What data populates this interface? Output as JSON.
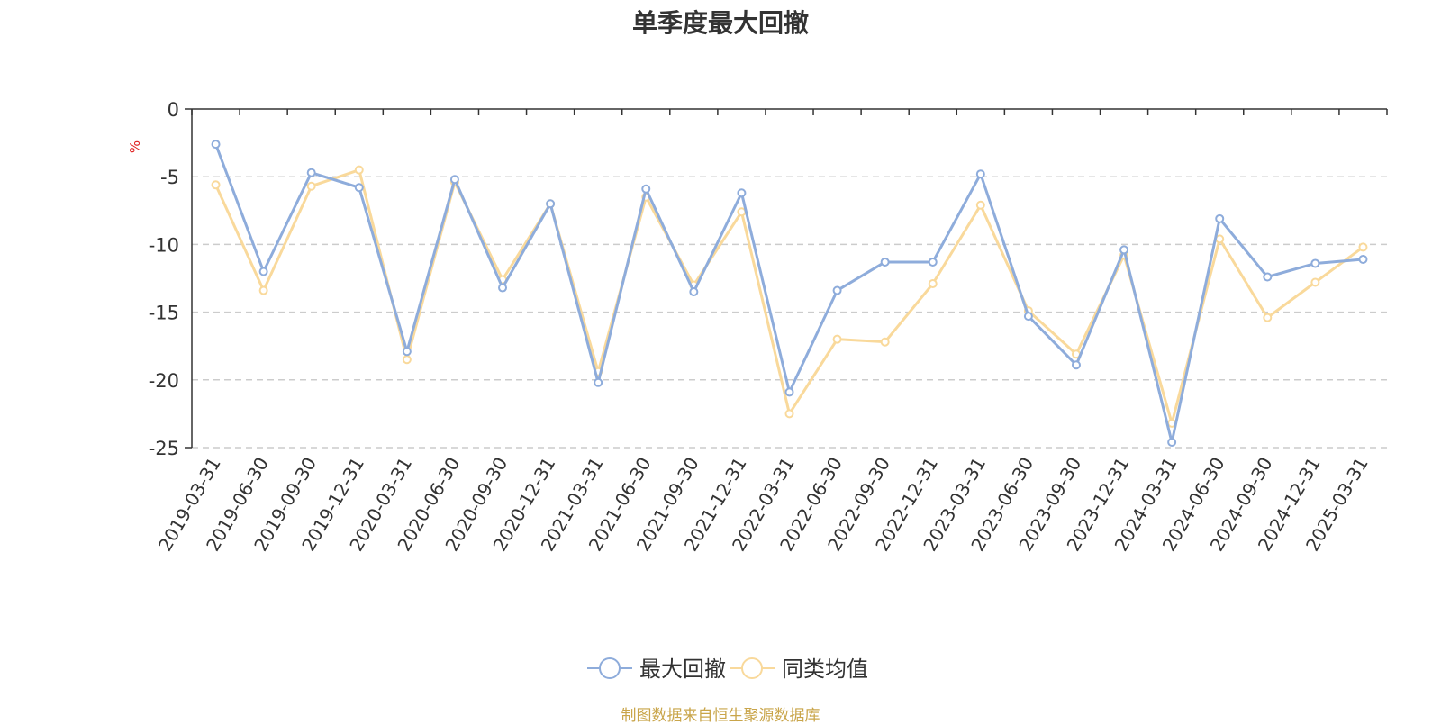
{
  "chart_data": {
    "type": "line",
    "title": "单季度最大回撤",
    "ylabel": "%",
    "ylim": [
      -25,
      0
    ],
    "yticks": [
      0,
      -5,
      -10,
      -15,
      -20,
      -25
    ],
    "grid": true,
    "legend_position": "bottom",
    "x": [
      "2019-03-31",
      "2019-06-30",
      "2019-09-30",
      "2019-12-31",
      "2020-03-31",
      "2020-06-30",
      "2020-09-30",
      "2020-12-31",
      "2021-03-31",
      "2021-06-30",
      "2021-09-30",
      "2021-12-31",
      "2022-03-31",
      "2022-06-30",
      "2022-09-30",
      "2022-12-31",
      "2023-03-31",
      "2023-06-30",
      "2023-09-30",
      "2023-12-31",
      "2024-03-31",
      "2024-06-30",
      "2024-09-30",
      "2024-12-31",
      "2025-03-31"
    ],
    "series": [
      {
        "name": "最大回撤",
        "color": "#8eacdb",
        "values": [
          -2.6,
          -12.0,
          -4.7,
          -5.8,
          -17.9,
          -5.2,
          -13.2,
          -7.0,
          -20.2,
          -5.9,
          -13.5,
          -6.2,
          -20.9,
          -13.4,
          -11.3,
          -11.3,
          -4.8,
          -15.3,
          -18.9,
          -10.4,
          -24.6,
          -8.1,
          -12.4,
          -11.4,
          -11.1
        ]
      },
      {
        "name": "同类均值",
        "color": "#f9d99b",
        "values": [
          -5.6,
          -13.4,
          -5.7,
          -4.5,
          -18.5,
          -5.4,
          -12.6,
          -7.0,
          -19.4,
          -6.5,
          -13.0,
          -7.6,
          -22.5,
          -17.0,
          -17.2,
          -12.9,
          -7.1,
          -14.9,
          -18.1,
          -10.8,
          -23.2,
          -9.6,
          -15.4,
          -12.8,
          -10.2
        ]
      }
    ]
  },
  "source_note": "制图数据来自恒生聚源数据库"
}
